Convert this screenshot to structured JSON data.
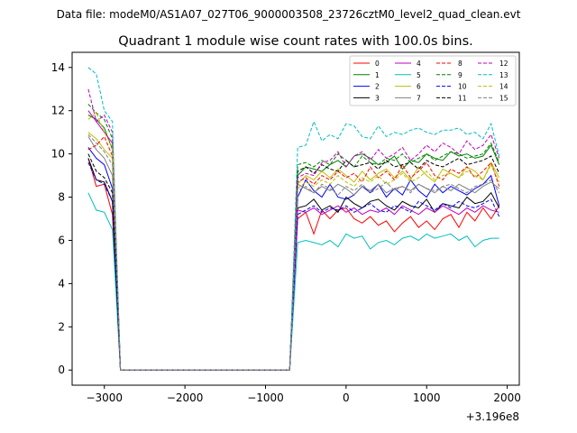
{
  "chart_data": {
    "type": "line",
    "suptitle": "Data file: modeM0/AS1A07_027T06_9000003508_23726cztM0_level2_quad_clean.evt",
    "title": "Quadrant 1 module wise count rates with 100.0s bins.",
    "xlabel": "",
    "ylabel": "",
    "x_offset_label": "+3.196e8",
    "xlim": [
      -3400,
      2150
    ],
    "ylim": [
      -0.7,
      14.7
    ],
    "xticks": [
      -3000,
      -2000,
      -1000,
      0,
      1000,
      2000
    ],
    "xtick_labels": [
      "−3000",
      "−2000",
      "−1000",
      "0",
      "1000",
      "2000"
    ],
    "yticks": [
      0,
      2,
      4,
      6,
      8,
      10,
      12,
      14
    ],
    "ytick_labels": [
      "0",
      "2",
      "4",
      "6",
      "8",
      "10",
      "12",
      "14"
    ],
    "grid": false,
    "legend_position": "upper-right",
    "legend_columns": 4,
    "x": [
      -3200,
      -3100,
      -3000,
      -2900,
      -2800,
      -2700,
      -2600,
      -2500,
      -2400,
      -2300,
      -2200,
      -2100,
      -2000,
      -1900,
      -1800,
      -1700,
      -1600,
      -1500,
      -1400,
      -1300,
      -1200,
      -1100,
      -1000,
      -900,
      -800,
      -700,
      -600,
      -500,
      -400,
      -300,
      -200,
      -100,
      0,
      100,
      200,
      300,
      400,
      500,
      600,
      700,
      800,
      900,
      1000,
      1100,
      1200,
      1300,
      1400,
      1500,
      1600,
      1700,
      1800,
      1900
    ],
    "series": [
      {
        "name": "0",
        "color": "#ff0000",
        "dash": false,
        "values": [
          9.8,
          8.5,
          8.6,
          7.2,
          0,
          0,
          0,
          0,
          0,
          0,
          0,
          0,
          0,
          0,
          0,
          0,
          0,
          0,
          0,
          0,
          0,
          0,
          0,
          0,
          0,
          0,
          7.0,
          7.3,
          6.3,
          7.4,
          7.0,
          7.4,
          7.5,
          7.0,
          6.8,
          7.1,
          6.7,
          6.9,
          6.4,
          6.8,
          7.1,
          6.6,
          6.9,
          6.5,
          7.0,
          7.2,
          6.6,
          7.3,
          6.9,
          7.5,
          7.0,
          7.6
        ]
      },
      {
        "name": "1",
        "color": "#008000",
        "dash": false,
        "values": [
          11.8,
          11.6,
          11.2,
          10.2,
          0,
          0,
          0,
          0,
          0,
          0,
          0,
          0,
          0,
          0,
          0,
          0,
          0,
          0,
          0,
          0,
          0,
          0,
          0,
          0,
          0,
          0,
          9.0,
          9.4,
          9.3,
          9.2,
          9.5,
          9.7,
          9.4,
          9.9,
          10.0,
          9.8,
          9.5,
          9.6,
          9.9,
          9.3,
          9.7,
          9.6,
          10.0,
          9.8,
          9.7,
          10.1,
          9.9,
          10.0,
          9.8,
          9.9,
          10.4,
          9.5
        ]
      },
      {
        "name": "2",
        "color": "#0000ff",
        "dash": false,
        "values": [
          10.3,
          9.8,
          9.5,
          8.4,
          0,
          0,
          0,
          0,
          0,
          0,
          0,
          0,
          0,
          0,
          0,
          0,
          0,
          0,
          0,
          0,
          0,
          0,
          0,
          0,
          0,
          0,
          8.0,
          8.8,
          8.3,
          8.0,
          8.6,
          8.0,
          7.9,
          8.1,
          8.5,
          8.2,
          8.6,
          8.0,
          8.4,
          8.1,
          8.8,
          8.3,
          8.0,
          8.6,
          8.2,
          8.5,
          8.3,
          8.1,
          8.4,
          8.6,
          9.0,
          7.6
        ]
      },
      {
        "name": "3",
        "color": "#000000",
        "dash": false,
        "values": [
          9.8,
          8.8,
          8.7,
          7.8,
          0,
          0,
          0,
          0,
          0,
          0,
          0,
          0,
          0,
          0,
          0,
          0,
          0,
          0,
          0,
          0,
          0,
          0,
          0,
          0,
          0,
          0,
          7.5,
          7.6,
          7.9,
          7.4,
          7.6,
          7.3,
          8.0,
          7.7,
          7.5,
          7.8,
          7.9,
          7.6,
          7.4,
          7.8,
          7.6,
          7.5,
          7.9,
          7.3,
          7.7,
          7.6,
          7.5,
          8.0,
          7.7,
          7.8,
          8.2,
          7.5
        ]
      },
      {
        "name": "4",
        "color": "#bf00bf",
        "dash": false,
        "values": [
          12.0,
          11.5,
          11.0,
          10.5,
          0,
          0,
          0,
          0,
          0,
          0,
          0,
          0,
          0,
          0,
          0,
          0,
          0,
          0,
          0,
          0,
          0,
          0,
          0,
          0,
          0,
          0,
          7.4,
          7.3,
          7.5,
          7.2,
          7.4,
          7.6,
          7.3,
          7.5,
          7.2,
          7.4,
          7.3,
          7.5,
          7.2,
          7.6,
          7.4,
          7.2,
          7.5,
          7.3,
          7.6,
          7.4,
          7.2,
          7.5,
          7.3,
          7.6,
          7.4,
          7.3
        ]
      },
      {
        "name": "5",
        "color": "#00bfbf",
        "dash": false,
        "values": [
          8.2,
          7.4,
          7.3,
          6.5,
          0,
          0,
          0,
          0,
          0,
          0,
          0,
          0,
          0,
          0,
          0,
          0,
          0,
          0,
          0,
          0,
          0,
          0,
          0,
          0,
          0,
          0,
          5.9,
          6.0,
          5.9,
          5.8,
          6.0,
          5.7,
          6.3,
          6.1,
          6.2,
          5.6,
          5.9,
          6.0,
          5.8,
          6.1,
          6.2,
          6.0,
          6.3,
          6.1,
          6.2,
          6.3,
          6.0,
          6.2,
          5.7,
          6.0,
          6.1,
          6.1
        ]
      },
      {
        "name": "6",
        "color": "#bfbf00",
        "dash": false,
        "values": [
          11.0,
          10.7,
          10.2,
          9.8,
          0,
          0,
          0,
          0,
          0,
          0,
          0,
          0,
          0,
          0,
          0,
          0,
          0,
          0,
          0,
          0,
          0,
          0,
          0,
          0,
          0,
          0,
          8.6,
          9.0,
          8.8,
          9.2,
          8.9,
          9.3,
          9.0,
          8.7,
          9.2,
          8.8,
          9.1,
          9.3,
          8.9,
          9.2,
          8.8,
          9.4,
          9.0,
          8.7,
          9.3,
          9.1,
          8.9,
          9.4,
          9.2,
          8.8,
          9.6,
          8.9
        ]
      },
      {
        "name": "7",
        "color": "#808080",
        "dash": false,
        "values": [
          10.8,
          10.2,
          9.8,
          9.0,
          0,
          0,
          0,
          0,
          0,
          0,
          0,
          0,
          0,
          0,
          0,
          0,
          0,
          0,
          0,
          0,
          0,
          0,
          0,
          0,
          0,
          0,
          8.6,
          8.4,
          8.2,
          8.5,
          8.3,
          8.6,
          8.4,
          8.1,
          8.5,
          8.3,
          8.6,
          8.2,
          8.4,
          8.5,
          8.3,
          8.6,
          8.4,
          8.2,
          8.5,
          8.3,
          8.6,
          8.4,
          8.2,
          8.5,
          8.7,
          8.4
        ]
      },
      {
        "name": "8",
        "color": "#ff0000",
        "dash": true,
        "values": [
          10.2,
          10.4,
          10.8,
          9.9,
          0,
          0,
          0,
          0,
          0,
          0,
          0,
          0,
          0,
          0,
          0,
          0,
          0,
          0,
          0,
          0,
          0,
          0,
          0,
          0,
          0,
          0,
          8.7,
          8.9,
          8.6,
          9.0,
          8.8,
          9.2,
          8.9,
          9.1,
          8.7,
          9.4,
          8.9,
          9.2,
          8.8,
          9.5,
          8.9,
          9.2,
          9.6,
          9.0,
          8.8,
          9.3,
          9.1,
          9.4,
          8.9,
          9.2,
          9.6,
          8.5
        ]
      },
      {
        "name": "9",
        "color": "#008000",
        "dash": true,
        "values": [
          12.3,
          11.9,
          11.6,
          10.7,
          0,
          0,
          0,
          0,
          0,
          0,
          0,
          0,
          0,
          0,
          0,
          0,
          0,
          0,
          0,
          0,
          0,
          0,
          0,
          0,
          0,
          0,
          9.5,
          9.6,
          9.4,
          9.7,
          9.5,
          10.0,
          9.7,
          9.4,
          9.9,
          9.6,
          9.5,
          9.8,
          9.7,
          10.0,
          9.6,
          9.8,
          10.0,
          9.7,
          9.9,
          10.1,
          10.0,
          9.8,
          9.9,
          10.0,
          10.5,
          9.6
        ]
      },
      {
        "name": "10",
        "color": "#0000ff",
        "dash": true,
        "values": [
          9.6,
          8.8,
          8.6,
          7.8,
          0,
          0,
          0,
          0,
          0,
          0,
          0,
          0,
          0,
          0,
          0,
          0,
          0,
          0,
          0,
          0,
          0,
          0,
          0,
          0,
          0,
          0,
          7.2,
          7.4,
          7.6,
          7.3,
          7.5,
          7.4,
          7.6,
          7.3,
          7.5,
          7.7,
          7.4,
          7.3,
          7.6,
          7.5,
          7.3,
          7.8,
          7.6,
          7.4,
          7.7,
          7.5,
          7.8,
          7.6,
          7.5,
          7.7,
          7.9,
          7.1
        ]
      },
      {
        "name": "11",
        "color": "#000000",
        "dash": true,
        "values": [
          10.0,
          9.2,
          8.9,
          8.2,
          0,
          0,
          0,
          0,
          0,
          0,
          0,
          0,
          0,
          0,
          0,
          0,
          0,
          0,
          0,
          0,
          0,
          0,
          0,
          0,
          0,
          0,
          9.2,
          9.4,
          9.1,
          9.5,
          9.3,
          9.2,
          9.7,
          9.4,
          9.5,
          9.6,
          9.3,
          9.7,
          9.4,
          9.5,
          9.6,
          9.3,
          9.7,
          9.5,
          9.4,
          9.6,
          9.8,
          9.5,
          9.6,
          9.7,
          9.9,
          9.1
        ]
      },
      {
        "name": "12",
        "color": "#bf00bf",
        "dash": true,
        "values": [
          13.0,
          11.5,
          11.8,
          11.0,
          0,
          0,
          0,
          0,
          0,
          0,
          0,
          0,
          0,
          0,
          0,
          0,
          0,
          0,
          0,
          0,
          0,
          0,
          0,
          0,
          0,
          0,
          8.9,
          9.1,
          9.0,
          9.6,
          9.7,
          10.1,
          9.4,
          9.9,
          10.1,
          9.7,
          10.2,
          9.8,
          10.0,
          10.3,
          9.7,
          10.0,
          10.4,
          10.1,
          10.5,
          10.3,
          10.0,
          10.6,
          10.2,
          10.4,
          10.9,
          9.8
        ]
      },
      {
        "name": "13",
        "color": "#00bfbf",
        "dash": true,
        "values": [
          14.0,
          13.7,
          12.0,
          11.5,
          0,
          0,
          0,
          0,
          0,
          0,
          0,
          0,
          0,
          0,
          0,
          0,
          0,
          0,
          0,
          0,
          0,
          0,
          0,
          0,
          0,
          0,
          10.3,
          10.4,
          11.5,
          10.6,
          10.9,
          10.7,
          11.4,
          11.3,
          10.8,
          10.7,
          11.3,
          10.8,
          11.0,
          10.9,
          11.1,
          11.2,
          11.0,
          10.9,
          11.1,
          11.1,
          11.2,
          10.9,
          11.0,
          10.7,
          11.4,
          9.9
        ]
      },
      {
        "name": "14",
        "color": "#bfbf00",
        "dash": true,
        "values": [
          11.6,
          11.9,
          11.0,
          10.3,
          0,
          0,
          0,
          0,
          0,
          0,
          0,
          0,
          0,
          0,
          0,
          0,
          0,
          0,
          0,
          0,
          0,
          0,
          0,
          0,
          0,
          0,
          8.4,
          8.7,
          8.5,
          8.8,
          8.6,
          9.0,
          8.7,
          8.5,
          8.9,
          8.7,
          9.0,
          8.6,
          8.8,
          9.1,
          8.7,
          8.9,
          9.2,
          8.8,
          9.0,
          9.1,
          8.9,
          9.2,
          9.0,
          8.8,
          9.5,
          8.7
        ]
      },
      {
        "name": "15",
        "color": "#808080",
        "dash": true,
        "values": [
          10.9,
          10.5,
          10.1,
          9.5,
          0,
          0,
          0,
          0,
          0,
          0,
          0,
          0,
          0,
          0,
          0,
          0,
          0,
          0,
          0,
          0,
          0,
          0,
          0,
          0,
          0,
          0,
          8.3,
          8.5,
          8.2,
          8.6,
          8.4,
          8.1,
          8.5,
          8.3,
          8.6,
          8.2,
          8.4,
          8.7,
          8.3,
          8.5,
          8.2,
          8.6,
          8.4,
          8.3,
          8.5,
          8.6,
          8.4,
          8.2,
          8.5,
          8.6,
          8.8,
          8.2
        ]
      }
    ]
  }
}
